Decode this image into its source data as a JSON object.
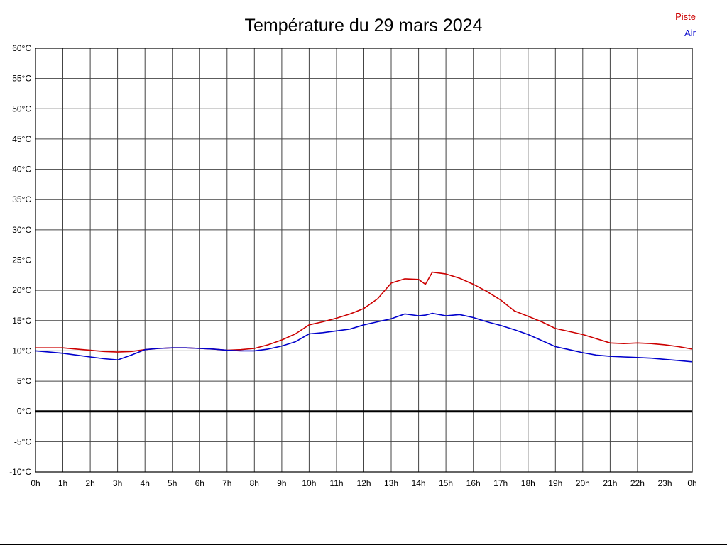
{
  "title": "Température du 29 mars 2024",
  "chart_data": {
    "type": "line",
    "title": "Température du 29 mars 2024",
    "xlabel": "",
    "ylabel": "°C",
    "xlim": [
      0,
      24
    ],
    "ylim": [
      -10,
      60
    ],
    "ytick_step": 5,
    "grid": true,
    "grid_color": "#444444",
    "axis_color": "#000000",
    "zero_line": true,
    "legend_position": "top-right",
    "y_tick_labels": [
      "60°C",
      "55°C",
      "50°C",
      "45°C",
      "40°C",
      "35°C",
      "30°C",
      "25°C",
      "20°C",
      "15°C",
      "10°C",
      "5°C",
      "0°C",
      "-5°C",
      "-10°C"
    ],
    "x_tick_labels": [
      "0h",
      "1h",
      "2h",
      "3h",
      "4h",
      "5h",
      "6h",
      "7h",
      "8h",
      "9h",
      "10h",
      "11h",
      "12h",
      "13h",
      "14h",
      "15h",
      "16h",
      "17h",
      "18h",
      "19h",
      "20h",
      "21h",
      "22h",
      "23h",
      "0h"
    ],
    "x": [
      0,
      0.5,
      1,
      1.5,
      2,
      2.5,
      3,
      3.5,
      4,
      4.5,
      5,
      5.5,
      6,
      6.5,
      7,
      7.5,
      8,
      8.5,
      9,
      9.5,
      10,
      10.5,
      11,
      11.5,
      12,
      12.5,
      13,
      13.5,
      14,
      14.25,
      14.5,
      15,
      15.5,
      16,
      16.5,
      17,
      17.5,
      18,
      18.5,
      19,
      19.5,
      20,
      20.5,
      21,
      21.5,
      22,
      22.5,
      23,
      23.5,
      24
    ],
    "series": [
      {
        "name": "Piste",
        "color": "#cc0000",
        "values": [
          10.5,
          10.5,
          10.5,
          10.3,
          10.1,
          9.9,
          9.8,
          9.9,
          10.2,
          10.4,
          10.5,
          10.5,
          10.4,
          10.3,
          10.1,
          10.2,
          10.4,
          11.0,
          11.8,
          12.8,
          14.3,
          14.8,
          15.4,
          16.1,
          17.0,
          18.6,
          21.2,
          21.9,
          21.8,
          21.0,
          23.0,
          22.7,
          22.0,
          21.0,
          19.8,
          18.4,
          16.6,
          15.7,
          14.8,
          13.7,
          13.2,
          12.7,
          12.0,
          11.3,
          11.2,
          11.3,
          11.2,
          11.0,
          10.7,
          10.3
        ]
      },
      {
        "name": "Air",
        "color": "#0000cc",
        "values": [
          10.0,
          9.8,
          9.6,
          9.3,
          9.0,
          8.7,
          8.5,
          9.3,
          10.2,
          10.4,
          10.5,
          10.5,
          10.4,
          10.3,
          10.1,
          10.0,
          10.0,
          10.3,
          10.8,
          11.5,
          12.8,
          13.0,
          13.3,
          13.6,
          14.3,
          14.8,
          15.3,
          16.1,
          15.8,
          15.9,
          16.2,
          15.8,
          16.0,
          15.5,
          14.8,
          14.2,
          13.5,
          12.7,
          11.7,
          10.7,
          10.2,
          9.7,
          9.3,
          9.1,
          9.0,
          8.9,
          8.8,
          8.6,
          8.4,
          8.2
        ]
      }
    ]
  }
}
